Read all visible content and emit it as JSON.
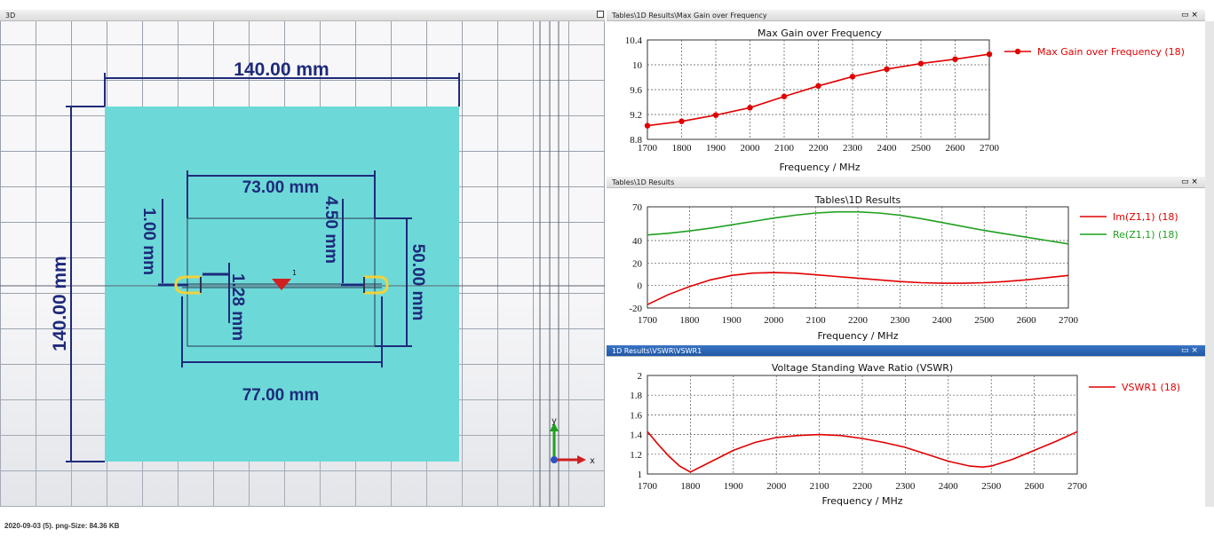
{
  "view3d": {
    "title": "3D",
    "dims": {
      "width_top": "140.00 mm",
      "height_left": "140.00 mm",
      "inner_top": "73.00 mm",
      "inner_bottom": "77.00 mm",
      "inner_right": "50.00 mm",
      "gap_left": "1.00 mm",
      "gap_right": "4.50 mm",
      "feed_gap": "1.28 mm"
    },
    "port_label": "1",
    "axis": {
      "x": "x",
      "y": "y"
    },
    "colors": {
      "board": "#6cd9d8",
      "dimension": "#1e2a7a",
      "grid": "#9aa1ab",
      "port": "#d02020",
      "highlight": "#f2d23a"
    }
  },
  "panes": {
    "gain": {
      "title": "Tables\\1D Results\\Max Gain over Frequency",
      "close": "▭ ×"
    },
    "results": {
      "title": "Tables\\1D Results",
      "close": "▭ ×"
    },
    "vswr": {
      "title": "1D Results\\VSWR\\VSWR1",
      "close": "▭ ×"
    }
  },
  "footer": {
    "text": "2020-09-03 (5). png-Size: 84.36 KB"
  },
  "chart_data": [
    {
      "type": "line",
      "title": "Max Gain over Frequency",
      "xlabel": "Frequency / MHz",
      "ylabel": "",
      "xlim": [
        1700,
        2700
      ],
      "ylim": [
        8.8,
        10.4
      ],
      "xticks": [
        1700,
        1800,
        1900,
        2000,
        2100,
        2200,
        2300,
        2400,
        2500,
        2600,
        2700
      ],
      "yticks": [
        8.8,
        9.2,
        9.6,
        10,
        10.4
      ],
      "ytick_labels": [
        "8.8",
        "9.2",
        "9.6",
        "10",
        "10.4"
      ],
      "grid": true,
      "legend": "right",
      "series": [
        {
          "name": "Max Gain over Frequency (18)",
          "color": "#e00000",
          "markers": true,
          "x": [
            1700,
            1800,
            1900,
            2000,
            2100,
            2200,
            2300,
            2400,
            2500,
            2600,
            2700
          ],
          "y": [
            9.02,
            9.09,
            9.19,
            9.31,
            9.49,
            9.66,
            9.81,
            9.93,
            10.02,
            10.09,
            10.17
          ]
        }
      ]
    },
    {
      "type": "line",
      "title": "Tables\\1D Results",
      "xlabel": "Frequency / MHz",
      "ylabel": "",
      "xlim": [
        1700,
        2700
      ],
      "ylim": [
        -20,
        70
      ],
      "xticks": [
        1700,
        1800,
        1900,
        2000,
        2100,
        2200,
        2300,
        2400,
        2500,
        2600,
        2700
      ],
      "yticks": [
        -20,
        0,
        20,
        40,
        70
      ],
      "ytick_labels": [
        "-20",
        "0",
        "20",
        "40",
        "70"
      ],
      "grid": true,
      "legend": "right",
      "series": [
        {
          "name": "Im(Z1,1) (18)",
          "color": "#e00000",
          "markers": false,
          "x": [
            1700,
            1750,
            1800,
            1850,
            1900,
            1950,
            2000,
            2050,
            2100,
            2150,
            2200,
            2250,
            2300,
            2350,
            2400,
            2450,
            2500,
            2550,
            2600,
            2650,
            2700
          ],
          "y": [
            -17,
            -8,
            -1,
            5,
            9,
            11,
            11.5,
            11,
            9.5,
            8,
            6.5,
            5,
            3.5,
            2.5,
            2,
            2,
            2.5,
            3.5,
            5,
            7,
            9
          ]
        },
        {
          "name": "Re(Z1,1) (18)",
          "color": "#1fa01f",
          "markers": false,
          "x": [
            1700,
            1750,
            1800,
            1850,
            1900,
            1950,
            2000,
            2050,
            2100,
            2150,
            2200,
            2250,
            2300,
            2350,
            2400,
            2450,
            2500,
            2550,
            2600,
            2650,
            2700
          ],
          "y": [
            45,
            46.5,
            48.5,
            51,
            54,
            57,
            60,
            62.5,
            64.5,
            65.5,
            65.5,
            64.5,
            62.5,
            59.5,
            56,
            52.5,
            49,
            46,
            43,
            40,
            37
          ]
        }
      ]
    },
    {
      "type": "line",
      "title": "Voltage Standing Wave Ratio (VSWR)",
      "xlabel": "Frequency / MHz",
      "ylabel": "",
      "xlim": [
        1700,
        2700
      ],
      "ylim": [
        1,
        2
      ],
      "xticks": [
        1700,
        1800,
        1900,
        2000,
        2100,
        2200,
        2300,
        2400,
        2500,
        2600,
        2700
      ],
      "yticks": [
        1,
        1.2,
        1.4,
        1.6,
        1.8,
        2
      ],
      "ytick_labels": [
        "1",
        "1.2",
        "1.4",
        "1.6",
        "1.8",
        "2"
      ],
      "grid": true,
      "legend": "right",
      "series": [
        {
          "name": "VSWR1 (18)",
          "color": "#e00000",
          "markers": false,
          "x": [
            1700,
            1725,
            1750,
            1775,
            1800,
            1850,
            1900,
            1950,
            2000,
            2050,
            2100,
            2150,
            2200,
            2250,
            2300,
            2350,
            2400,
            2450,
            2480,
            2500,
            2550,
            2600,
            2650,
            2700
          ],
          "y": [
            1.43,
            1.3,
            1.18,
            1.08,
            1.02,
            1.13,
            1.24,
            1.32,
            1.37,
            1.39,
            1.4,
            1.39,
            1.36,
            1.32,
            1.27,
            1.2,
            1.13,
            1.08,
            1.07,
            1.08,
            1.15,
            1.24,
            1.33,
            1.43
          ]
        }
      ]
    }
  ]
}
